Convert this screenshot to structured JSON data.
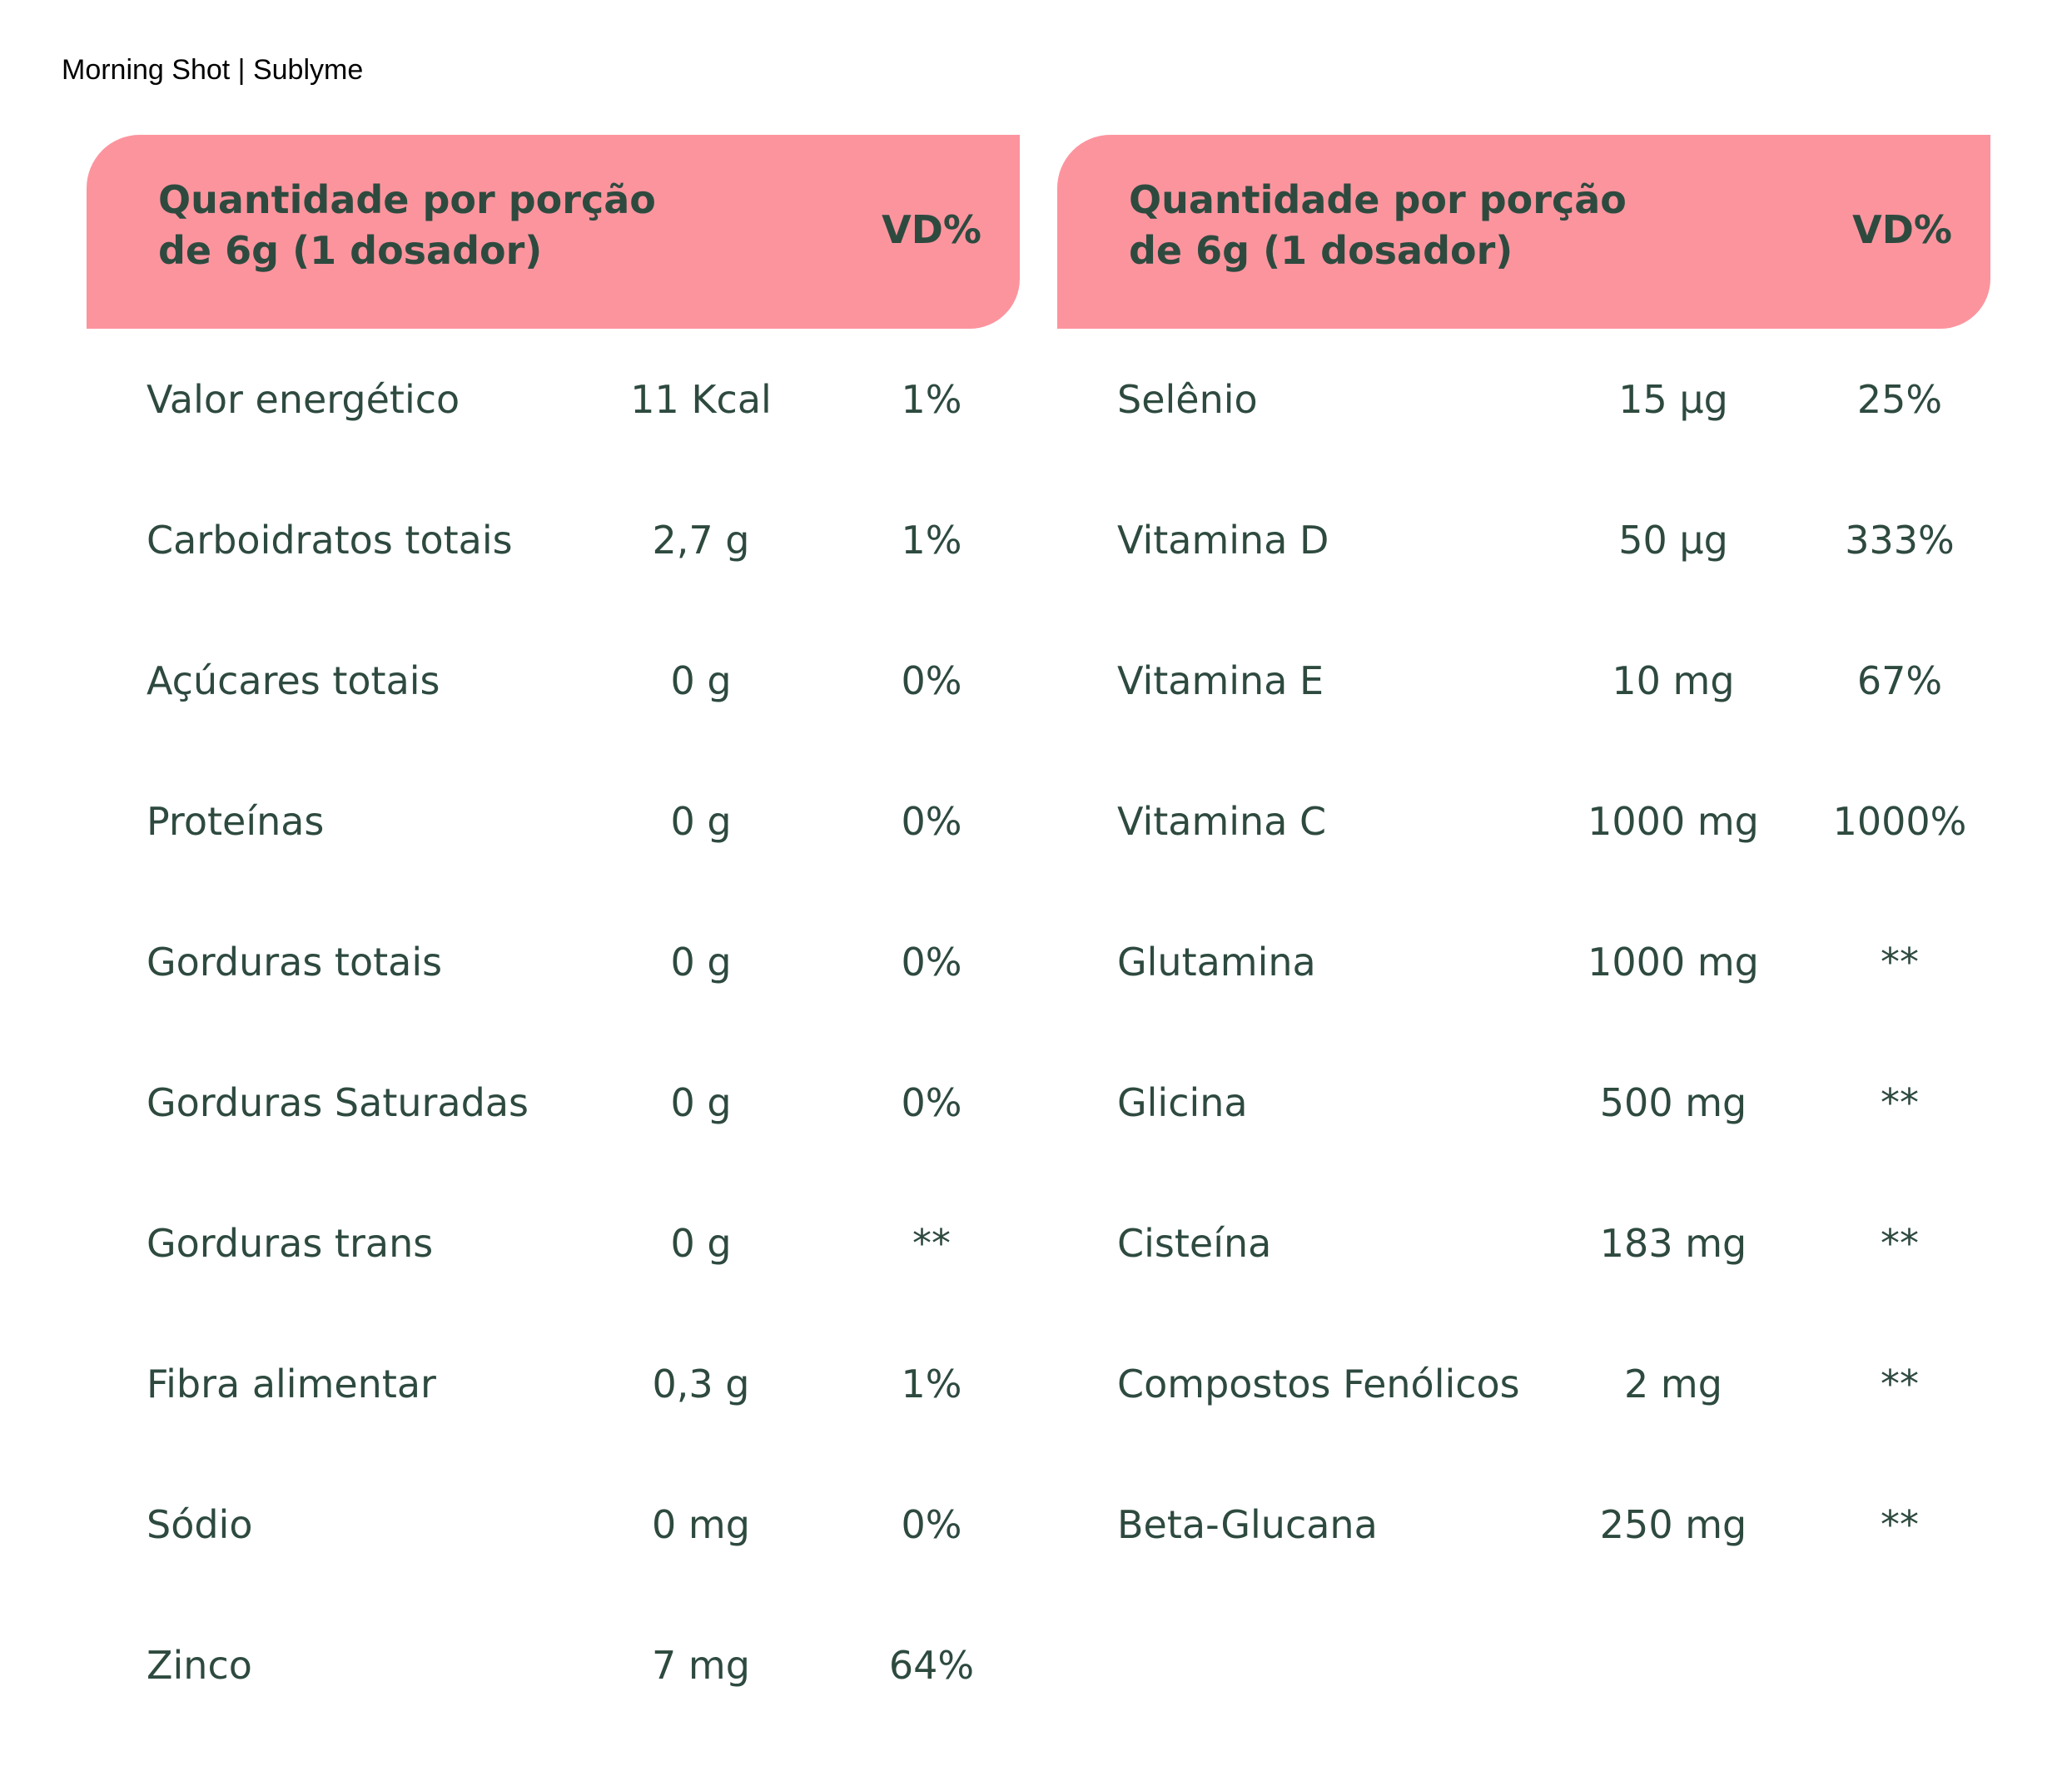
{
  "page": {
    "title": "Morning Shot | Sublyme"
  },
  "colors": {
    "header_bg": "#fc949e",
    "text": "#2e4a3f"
  },
  "tables": [
    {
      "header": {
        "title_line1": "Quantidade por porção",
        "title_line2": "de 6g (1 dosador)",
        "vd": "VD%"
      },
      "rows": [
        {
          "name": "Valor energético",
          "amount": "11 Kcal",
          "vd": "1%"
        },
        {
          "name": "Carboidratos totais",
          "amount": "2,7 g",
          "vd": "1%"
        },
        {
          "name": "Açúcares totais",
          "amount": "0 g",
          "vd": "0%"
        },
        {
          "name": "Proteínas",
          "amount": "0 g",
          "vd": "0%"
        },
        {
          "name": "Gorduras totais",
          "amount": "0 g",
          "vd": "0%"
        },
        {
          "name": "Gorduras Saturadas",
          "amount": "0 g",
          "vd": "0%"
        },
        {
          "name": "Gorduras trans",
          "amount": "0 g",
          "vd": "**"
        },
        {
          "name": "Fibra alimentar",
          "amount": "0,3 g",
          "vd": "1%"
        },
        {
          "name": "Sódio",
          "amount": "0 mg",
          "vd": "0%"
        },
        {
          "name": "Zinco",
          "amount": "7 mg",
          "vd": "64%"
        }
      ]
    },
    {
      "header": {
        "title_line1": "Quantidade por porção",
        "title_line2": "de 6g (1 dosador)",
        "vd": "VD%"
      },
      "rows": [
        {
          "name": "Selênio",
          "amount": "15 µg",
          "vd": "25%"
        },
        {
          "name": "Vitamina D",
          "amount": "50 µg",
          "vd": "333%"
        },
        {
          "name": "Vitamina E",
          "amount": "10 mg",
          "vd": "67%"
        },
        {
          "name": "Vitamina C",
          "amount": "1000 mg",
          "vd": "1000%"
        },
        {
          "name": "Glutamina",
          "amount": "1000 mg",
          "vd": "**"
        },
        {
          "name": "Glicina",
          "amount": "500 mg",
          "vd": "**"
        },
        {
          "name": "Cisteína",
          "amount": "183 mg",
          "vd": "**"
        },
        {
          "name": "Compostos Fenólicos",
          "amount": "2 mg",
          "vd": "**"
        },
        {
          "name": "Beta-Glucana",
          "amount": "250 mg",
          "vd": "**"
        }
      ]
    }
  ]
}
